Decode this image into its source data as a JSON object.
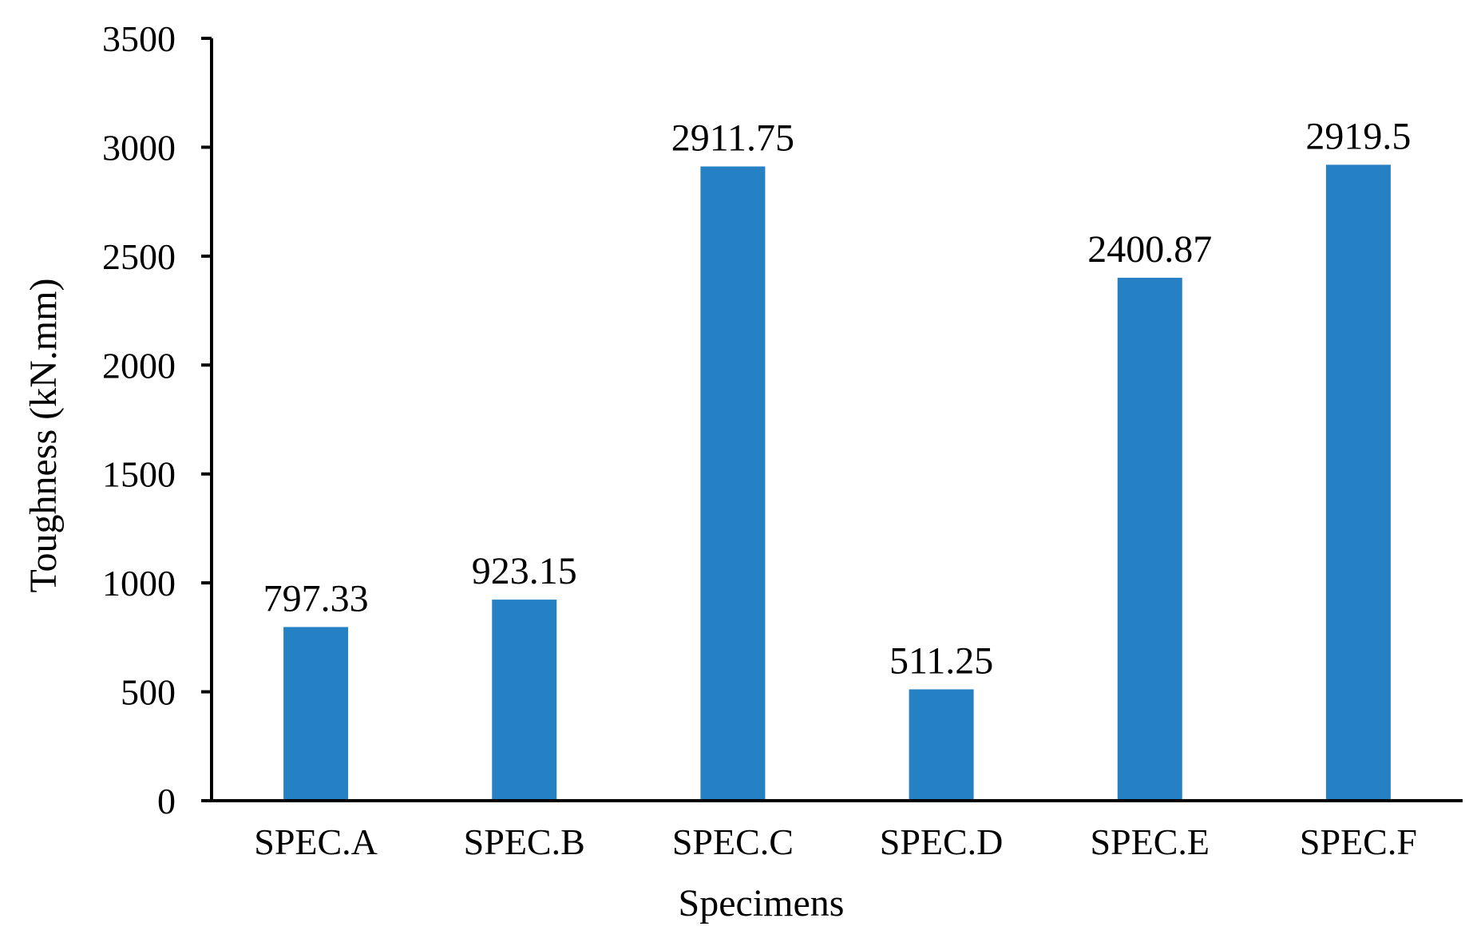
{
  "chart_data": {
    "type": "bar",
    "title": "",
    "xlabel": "Specimens",
    "ylabel": "Toughness (kN.mm)",
    "categories": [
      "SPEC.A",
      "SPEC.B",
      "SPEC.C",
      "SPEC.D",
      "SPEC.E",
      "SPEC.F"
    ],
    "values": [
      797.33,
      923.15,
      2911.75,
      511.25,
      2400.87,
      2919.5
    ],
    "data_labels": [
      "797.33",
      "923.15",
      "2911.75",
      "511.25",
      "2400.87",
      "2919.5"
    ],
    "yticks": [
      "0",
      "500",
      "1000",
      "1500",
      "2000",
      "2500",
      "3000",
      "3500"
    ],
    "ylim": [
      0,
      3500
    ],
    "grid": false,
    "legend": "none",
    "bar_color": "#2581C4"
  }
}
